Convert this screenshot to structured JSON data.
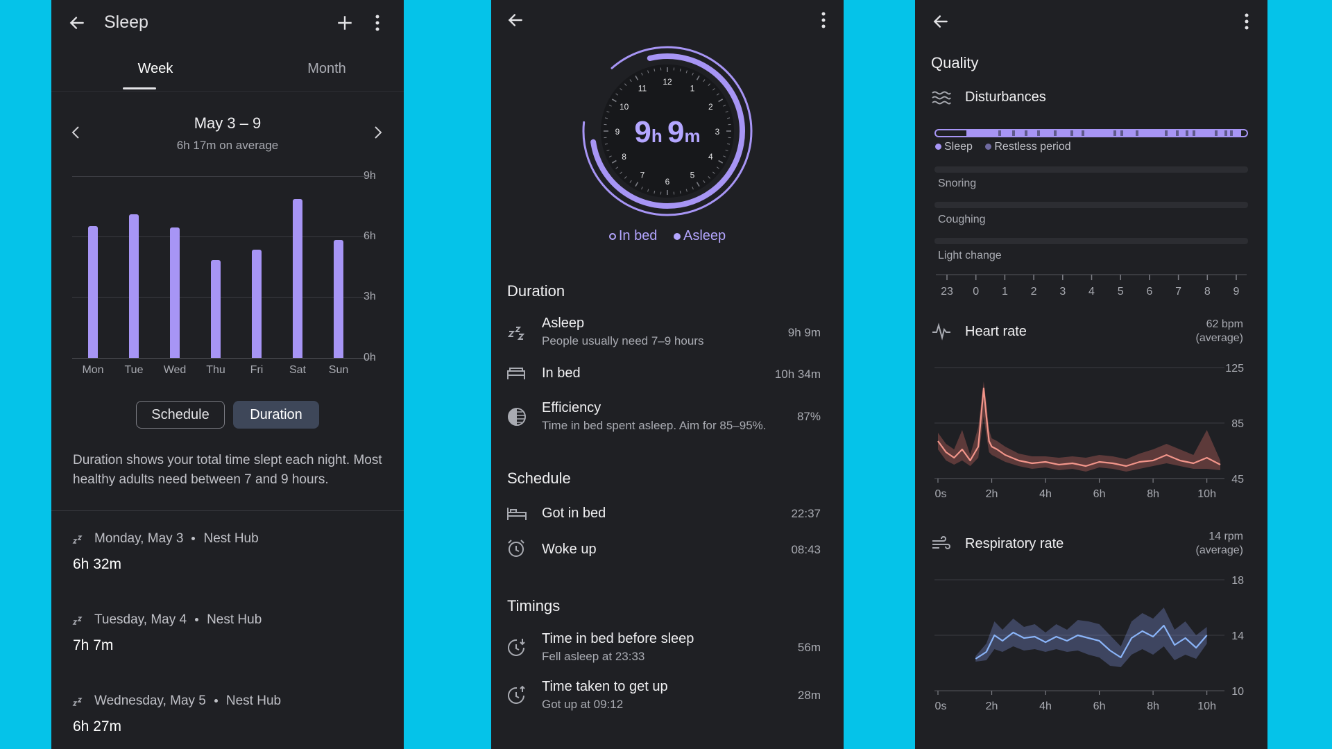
{
  "p1": {
    "title": "Sleep",
    "tabs": [
      "Week",
      "Month"
    ],
    "range": "May 3 – 9",
    "average": "6h 17m on average",
    "y_ticks": [
      "9h",
      "6h",
      "3h",
      "0h"
    ],
    "toggle": {
      "schedule": "Schedule",
      "duration": "Duration"
    },
    "description": "Duration shows your total time slept each night. Most healthy adults need between 7 and 9 hours.",
    "entries": [
      {
        "date": "Monday, May 3",
        "source": "Nest Hub",
        "duration": "6h 32m"
      },
      {
        "date": "Tuesday, May 4",
        "source": "Nest Hub",
        "duration": "7h 7m"
      },
      {
        "date": "Wednesday, May 5",
        "source": "Nest Hub",
        "duration": "6h 27m"
      }
    ]
  },
  "chart_data": [
    {
      "type": "bar",
      "categories": [
        "Mon",
        "Tue",
        "Wed",
        "Thu",
        "Fri",
        "Sat",
        "Sun"
      ],
      "values": [
        6.53,
        7.12,
        6.45,
        4.85,
        5.35,
        7.85,
        5.85
      ],
      "y_ticks": [
        "9h",
        "6h",
        "3h",
        "0h"
      ],
      "ylim": [
        0,
        9
      ]
    },
    {
      "type": "area",
      "title": "Heart rate",
      "x_ticks": [
        "0s",
        "2h",
        "4h",
        "6h",
        "8h",
        "10h"
      ],
      "y_ticks": [
        "125",
        "85",
        "45"
      ],
      "ylim": [
        45,
        125
      ],
      "x": [
        0,
        0.3,
        0.6,
        0.9,
        1.2,
        1.5,
        1.7,
        1.8,
        1.9,
        2.0,
        2.2,
        2.5,
        3.0,
        3.5,
        4.0,
        4.5,
        5.0,
        5.5,
        6.0,
        6.5,
        7.0,
        7.5,
        8.0,
        8.5,
        9.0,
        9.5,
        10.0,
        10.5
      ],
      "values": [
        72,
        64,
        60,
        66,
        58,
        68,
        110,
        90,
        72,
        68,
        66,
        62,
        58,
        56,
        57,
        55,
        56,
        54,
        57,
        56,
        54,
        57,
        58,
        62,
        58,
        56,
        60,
        55
      ],
      "band_low": [
        66,
        58,
        55,
        58,
        54,
        60,
        90,
        76,
        64,
        62,
        60,
        57,
        54,
        52,
        53,
        51,
        52,
        50,
        53,
        52,
        50,
        52,
        54,
        56,
        54,
        52,
        52,
        51
      ],
      "band_high": [
        78,
        70,
        66,
        80,
        62,
        82,
        115,
        100,
        80,
        74,
        72,
        68,
        63,
        61,
        61,
        60,
        61,
        60,
        62,
        61,
        59,
        63,
        66,
        70,
        66,
        62,
        80,
        58
      ]
    },
    {
      "type": "area",
      "title": "Respiratory rate",
      "x_ticks": [
        "0s",
        "2h",
        "4h",
        "6h",
        "8h",
        "10h"
      ],
      "y_ticks": [
        "18",
        "14",
        "10"
      ],
      "ylim": [
        10,
        18
      ],
      "x": [
        1.4,
        1.8,
        2.1,
        2.4,
        2.8,
        3.2,
        3.6,
        4.0,
        4.4,
        4.8,
        5.2,
        5.6,
        6.0,
        6.4,
        6.8,
        7.2,
        7.6,
        8.0,
        8.4,
        8.8,
        9.2,
        9.6,
        10.0
      ],
      "values": [
        12.3,
        12.8,
        14.0,
        13.6,
        14.2,
        13.8,
        13.9,
        13.5,
        13.9,
        13.6,
        14.0,
        13.8,
        13.6,
        12.9,
        12.4,
        13.8,
        14.3,
        13.9,
        14.7,
        13.3,
        13.8,
        13.1,
        14.0
      ],
      "band_low": [
        12.1,
        12.2,
        13.0,
        12.8,
        13.2,
        12.9,
        13.0,
        12.8,
        13.0,
        12.8,
        12.9,
        12.6,
        12.4,
        11.8,
        11.7,
        12.6,
        13.0,
        12.6,
        13.2,
        12.2,
        12.6,
        12.3,
        13.4
      ],
      "band_high": [
        12.5,
        13.4,
        15.0,
        14.4,
        15.2,
        14.6,
        14.8,
        14.2,
        14.8,
        14.4,
        15.1,
        15.0,
        14.8,
        14.0,
        13.2,
        15.0,
        15.6,
        15.2,
        16.0,
        14.4,
        15.0,
        14.0,
        14.6
      ]
    }
  ],
  "p2": {
    "clock": {
      "hours": "9",
      "h": "h",
      "minutes": "9",
      "m": "m",
      "numbers": [
        "12",
        "1",
        "2",
        "3",
        "4",
        "5",
        "6",
        "7",
        "8",
        "9",
        "10",
        "11"
      ],
      "in_bed_start_hour": 22.62,
      "in_bed_end_hour": 9.2,
      "asleep_start_hour": 23.55,
      "asleep_end_hour": 8.72
    },
    "legend": {
      "in_bed": "In bed",
      "asleep": "Asleep"
    },
    "sections": {
      "duration": "Duration",
      "schedule": "Schedule",
      "timings": "Timings"
    },
    "rows": {
      "asleep": {
        "title": "Asleep",
        "sub": "People usually need 7–9 hours",
        "value": "9h 9m"
      },
      "in_bed": {
        "title": "In bed",
        "value": "10h 34m"
      },
      "efficiency": {
        "title": "Efficiency",
        "sub": "Time in bed spent asleep. Aim for 85–95%.",
        "value": "87%"
      },
      "got_in_bed": {
        "title": "Got in bed",
        "value": "22:37"
      },
      "woke_up": {
        "title": "Woke up",
        "value": "08:43"
      },
      "before_sleep": {
        "title": "Time in bed before sleep",
        "sub": "Fell asleep at 23:33",
        "value": "56m"
      },
      "get_up": {
        "title": "Time taken to get up",
        "sub": "Got up at 09:12",
        "value": "28m"
      }
    }
  },
  "p3": {
    "quality": "Quality",
    "disturbances": "Disturbances",
    "legend": {
      "sleep": "Sleep",
      "restless": "Restless period"
    },
    "rows": [
      "Snoring",
      "Coughing",
      "Light change"
    ],
    "hour_ticks": [
      "23",
      "0",
      "1",
      "2",
      "3",
      "4",
      "5",
      "6",
      "7",
      "8",
      "9"
    ],
    "heart_rate": {
      "title": "Heart rate",
      "value": "62 bpm",
      "note": "(average)"
    },
    "respiratory": {
      "title": "Respiratory rate",
      "value": "14 rpm",
      "note": "(average)"
    },
    "colors": {
      "sleep": "#a795f5",
      "restless": "#5f5a8c",
      "heart": "#f2958a",
      "resp": "#8ab4f8"
    }
  }
}
